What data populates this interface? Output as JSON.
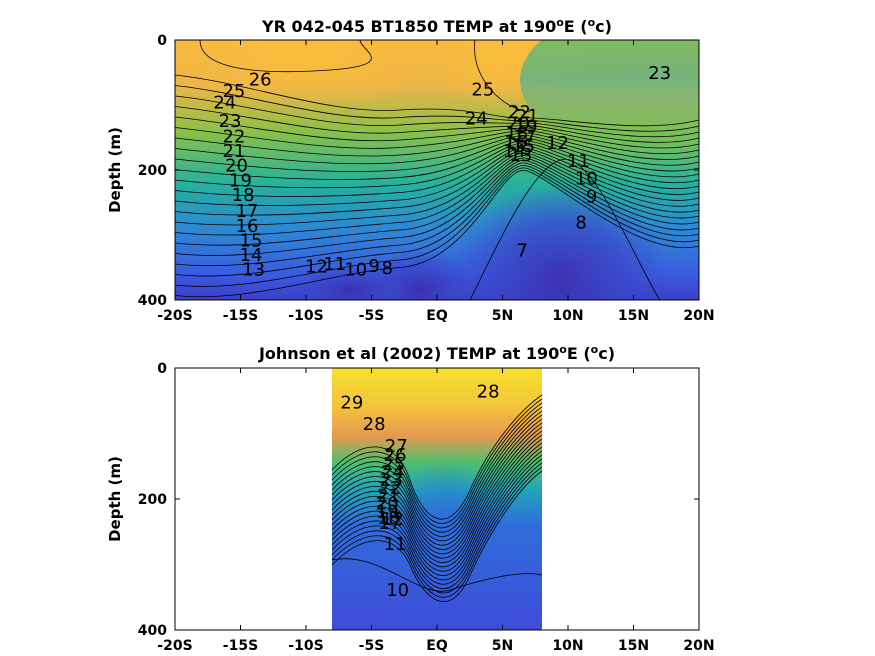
{
  "chart_data": [
    {
      "type": "heatmap",
      "title_main": "YR 042-045 BT1850 TEMP at 190",
      "title_deg": "o",
      "title_tail1": "E (",
      "title_tail2": "c)",
      "ylabel": "Depth (m)",
      "xlim": [
        -20,
        20
      ],
      "ylim": [
        0,
        400
      ],
      "x_ticks": [
        -20,
        -15,
        -10,
        -5,
        0,
        5,
        10,
        15,
        20
      ],
      "x_tick_labels": [
        "-20S",
        "-15S",
        "-10S",
        "-5S",
        "EQ",
        "5N",
        "10N",
        "15N",
        "20N"
      ],
      "y_ticks": [
        0,
        200,
        400
      ],
      "y_tick_labels": [
        "0",
        "200",
        "400"
      ],
      "data_extent_x": [
        -20,
        20
      ],
      "contour_labels": [
        {
          "text": "26",
          "x": -13.5,
          "y": 70
        },
        {
          "text": "25",
          "x": -15.5,
          "y": 88
        },
        {
          "text": "24",
          "x": -16.2,
          "y": 105
        },
        {
          "text": "23",
          "x": -15.8,
          "y": 134
        },
        {
          "text": "22",
          "x": -15.5,
          "y": 158
        },
        {
          "text": "21",
          "x": -15.5,
          "y": 180
        },
        {
          "text": "20",
          "x": -15.3,
          "y": 202
        },
        {
          "text": "19",
          "x": -15.0,
          "y": 225
        },
        {
          "text": "18",
          "x": -14.8,
          "y": 248
        },
        {
          "text": "17",
          "x": -14.5,
          "y": 272
        },
        {
          "text": "16",
          "x": -14.5,
          "y": 295
        },
        {
          "text": "15",
          "x": -14.2,
          "y": 318
        },
        {
          "text": "14",
          "x": -14.2,
          "y": 340
        },
        {
          "text": "13",
          "x": -14.0,
          "y": 362
        },
        {
          "text": "12",
          "x": -9.2,
          "y": 358
        },
        {
          "text": "11",
          "x": -7.8,
          "y": 354
        },
        {
          "text": "10",
          "x": -6.2,
          "y": 362
        },
        {
          "text": "9",
          "x": -4.8,
          "y": 357
        },
        {
          "text": "8",
          "x": -3.8,
          "y": 360
        },
        {
          "text": "7",
          "x": 6.5,
          "y": 333
        },
        {
          "text": "25",
          "x": 3.5,
          "y": 85
        },
        {
          "text": "24",
          "x": 3.0,
          "y": 130
        },
        {
          "text": "12",
          "x": 9.2,
          "y": 168
        },
        {
          "text": "11",
          "x": 10.8,
          "y": 195
        },
        {
          "text": "10",
          "x": 11.4,
          "y": 222
        },
        {
          "text": "9",
          "x": 11.8,
          "y": 250
        },
        {
          "text": "8",
          "x": 11.0,
          "y": 290
        },
        {
          "text": "23",
          "x": 17.0,
          "y": 60
        },
        {
          "text": "22",
          "x": 6.3,
          "y": 120
        },
        {
          "text": "21",
          "x": 6.9,
          "y": 126
        },
        {
          "text": "20",
          "x": 6.2,
          "y": 138
        },
        {
          "text": "19",
          "x": 6.8,
          "y": 142
        },
        {
          "text": "18",
          "x": 6.1,
          "y": 152
        },
        {
          "text": "17",
          "x": 6.7,
          "y": 158
        },
        {
          "text": "16",
          "x": 6.0,
          "y": 166
        },
        {
          "text": "15",
          "x": 6.6,
          "y": 172
        },
        {
          "text": "14",
          "x": 5.9,
          "y": 180
        },
        {
          "text": "13",
          "x": 6.4,
          "y": 186
        }
      ]
    },
    {
      "type": "heatmap",
      "title_main": "Johnson et al (2002) TEMP at 190",
      "title_deg": "o",
      "title_tail1": "E (",
      "title_tail2": "c)",
      "ylabel": "Depth (m)",
      "xlim": [
        -20,
        20
      ],
      "ylim": [
        0,
        400
      ],
      "x_ticks": [
        -20,
        -15,
        -10,
        -5,
        0,
        5,
        10,
        15,
        20
      ],
      "x_tick_labels": [
        "-20S",
        "-15S",
        "-10S",
        "-5S",
        "EQ",
        "5N",
        "10N",
        "15N",
        "20N"
      ],
      "y_ticks": [
        0,
        200,
        400
      ],
      "y_tick_labels": [
        "0",
        "200",
        "400"
      ],
      "data_extent_x": [
        -8,
        8
      ],
      "contour_labels": [
        {
          "text": "29",
          "x": -6.5,
          "y": 62
        },
        {
          "text": "28",
          "x": -4.8,
          "y": 95
        },
        {
          "text": "28",
          "x": 3.9,
          "y": 45
        },
        {
          "text": "27",
          "x": -3.1,
          "y": 128
        },
        {
          "text": "26",
          "x": -3.2,
          "y": 142
        },
        {
          "text": "25",
          "x": -3.3,
          "y": 156
        },
        {
          "text": "24",
          "x": -3.4,
          "y": 168
        },
        {
          "text": "23",
          "x": -3.5,
          "y": 180
        },
        {
          "text": "22",
          "x": -3.6,
          "y": 192
        },
        {
          "text": "21",
          "x": -3.7,
          "y": 204
        },
        {
          "text": "20",
          "x": -3.8,
          "y": 216
        },
        {
          "text": "19",
          "x": -3.8,
          "y": 228
        },
        {
          "text": "18",
          "x": -3.7,
          "y": 238
        },
        {
          "text": "17",
          "x": -3.6,
          "y": 246
        },
        {
          "text": "12",
          "x": -3.4,
          "y": 240
        },
        {
          "text": "11",
          "x": -3.2,
          "y": 278
        },
        {
          "text": "10",
          "x": -3.0,
          "y": 348
        }
      ]
    }
  ],
  "colors": {
    "warm_yellow": "#f5e02a",
    "orange": "#f9b840",
    "green": "#7cc24a",
    "teal": "#21b39a",
    "blue": "#2f6ddb",
    "deep_blue": "#3b2fb0",
    "contour": "#000000"
  }
}
